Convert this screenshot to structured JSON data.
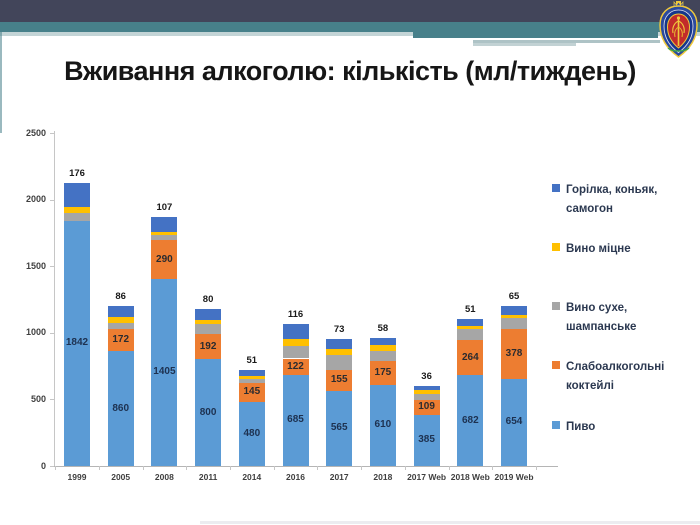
{
  "slide": {
    "title": "Вживання алкоголю: кількість (мл/тиждень)"
  },
  "icons": {
    "emblem": "ukrainian-medical-academy-emblem"
  },
  "theme": {
    "header_navy": "#42455a",
    "header_teal": "#47808a",
    "header_pale_teal": "#c3d4d6",
    "header_gray_line": "#aec3c6",
    "header_gray_line2": "#c2d2d4",
    "axis_line": "#c6c6c6",
    "background": "#ffffff"
  },
  "chart_data": {
    "type": "bar",
    "stacked": true,
    "title": "",
    "xlabel": "",
    "ylabel": "",
    "ylim": [
      0,
      2500
    ],
    "y_ticks": [
      0,
      500,
      1000,
      1500,
      2000,
      2500
    ],
    "gridlines": false,
    "legend_position": "right",
    "categories": [
      "1999",
      "2005",
      "2008",
      "2011",
      "2014",
      "2016",
      "2017",
      "2018",
      "2017 Web",
      "2018 Web",
      "2019 Web"
    ],
    "series": [
      {
        "name": "Пиво",
        "color": "#5B9BD5",
        "values": [
          1842,
          860,
          1405,
          800,
          480,
          685,
          565,
          610,
          385,
          682,
          654
        ],
        "labels_visible": true,
        "label_color": "#1d3150",
        "label_position": "inside"
      },
      {
        "name": "Слабоалкогольні коктейлі",
        "color": "#ED7D31",
        "values": [
          0,
          172,
          290,
          192,
          145,
          122,
          155,
          175,
          109,
          264,
          378
        ],
        "labels_visible": true,
        "label_color": "#2a2b2f",
        "label_position": "inside"
      },
      {
        "name": "Вино сухе, шампанське",
        "color": "#A6A6A6",
        "values": [
          55,
          45,
          40,
          75,
          25,
          95,
          110,
          80,
          45,
          80,
          80
        ],
        "labels_visible": false,
        "label_color": "#2a2b2f",
        "label_position": "inside"
      },
      {
        "name": "Вино міцне",
        "color": "#FFC000",
        "values": [
          50,
          40,
          25,
          30,
          23,
          48,
          50,
          40,
          28,
          27,
          24
        ],
        "labels_visible": false,
        "label_color": "#2a2b2f",
        "label_position": "inside"
      },
      {
        "name": "Горілка, коньяк, самогон",
        "color": "#4472C4",
        "values": [
          176,
          86,
          107,
          80,
          51,
          116,
          73,
          58,
          36,
          51,
          65
        ],
        "labels_visible": true,
        "label_color": "#1a1a1a",
        "label_position": "above-bar"
      }
    ]
  }
}
